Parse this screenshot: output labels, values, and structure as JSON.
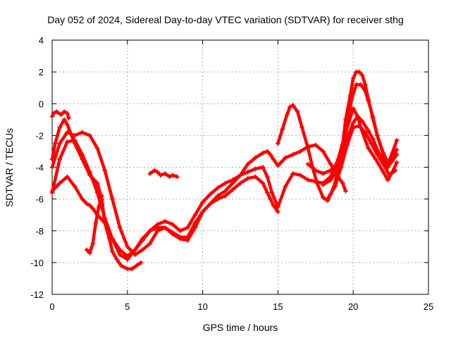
{
  "chart_data": {
    "type": "scatter",
    "title": "Day 052 of 2024, Sidereal Day-to-day VTEC variation (SDTVAR) for receiver sthg",
    "xlabel": "GPS time / hours",
    "ylabel": "SDTVAR / TECUs",
    "xlim": [
      0,
      25
    ],
    "ylim": [
      -12,
      4
    ],
    "xticks": [
      0,
      5,
      10,
      15,
      20,
      25
    ],
    "yticks": [
      -12,
      -10,
      -8,
      -6,
      -4,
      -2,
      0,
      2,
      4
    ],
    "grid": true,
    "marker": "+",
    "color": "#ff0000",
    "series": [
      {
        "name": "trace-1",
        "x": [
          0.0,
          0.2,
          0.5,
          0.8,
          1.0,
          1.5,
          2.0,
          2.5,
          3.0,
          3.3,
          3.5,
          3.8,
          4.0,
          4.3,
          4.6,
          5.0,
          5.3,
          5.6,
          5.9
        ],
        "y": [
          -3.5,
          -2.5,
          -1.5,
          -1.0,
          -1.3,
          -2.5,
          -3.5,
          -4.5,
          -5.0,
          -6.0,
          -7.5,
          -8.5,
          -9.3,
          -9.8,
          -10.2,
          -10.4,
          -10.4,
          -10.2,
          -10.0
        ]
      },
      {
        "name": "trace-2",
        "x": [
          0.0,
          0.1,
          0.3,
          0.6,
          0.8,
          1.0,
          1.1
        ],
        "y": [
          -0.8,
          -0.6,
          -0.5,
          -0.7,
          -0.5,
          -0.6,
          -0.9
        ]
      },
      {
        "name": "trace-3",
        "x": [
          0.0,
          0.5,
          1.0,
          1.5,
          2.0,
          2.5,
          3.0,
          3.5,
          4.0,
          4.5,
          5.0,
          5.5,
          6.0,
          6.5,
          7.0,
          7.5,
          8.0,
          8.5,
          9.0,
          9.5,
          10.0,
          10.5,
          11.0,
          11.5,
          12.0,
          12.5,
          13.0,
          13.5,
          14.0,
          14.3,
          14.5,
          14.7,
          15.0,
          15.2,
          15.5,
          16.0,
          16.5,
          17.0,
          17.5,
          18.0,
          18.5,
          19.0,
          19.3,
          19.5
        ],
        "y": [
          -4.0,
          -2.5,
          -1.8,
          -2.0,
          -1.8,
          -2.0,
          -2.8,
          -4.2,
          -6.0,
          -7.8,
          -9.0,
          -9.5,
          -9.2,
          -8.8,
          -8.0,
          -7.8,
          -8.2,
          -8.5,
          -8.6,
          -7.8,
          -6.8,
          -6.3,
          -5.8,
          -5.5,
          -5.0,
          -4.5,
          -3.8,
          -3.4,
          -3.1,
          -3.0,
          -3.2,
          -3.5,
          -3.9,
          -3.7,
          -3.4,
          -3.2,
          -3.0,
          -2.7,
          -2.6,
          -3.0,
          -3.8,
          -4.6,
          -5.0,
          -5.5
        ]
      },
      {
        "name": "trace-4",
        "x": [
          0.0,
          0.3,
          0.5,
          1.0,
          1.5,
          2.0,
          2.3,
          2.5,
          2.7,
          3.0,
          3.5,
          4.0,
          4.5,
          5.0,
          5.5,
          6.0,
          6.5,
          7.0,
          7.5,
          8.0,
          8.5,
          9.0,
          9.5,
          10.0,
          10.5,
          11.0,
          11.5,
          12.0,
          12.5,
          13.0,
          13.5,
          14.0,
          14.3,
          14.5,
          14.7,
          15.0
        ],
        "y": [
          -5.5,
          -5.2,
          -5.0,
          -4.6,
          -5.2,
          -6.0,
          -6.3,
          -6.4,
          -6.6,
          -7.0,
          -7.5,
          -8.5,
          -9.5,
          -9.8,
          -9.2,
          -8.5,
          -8.0,
          -7.8,
          -7.8,
          -8.1,
          -8.4,
          -8.4,
          -7.5,
          -6.8,
          -6.3,
          -6.0,
          -5.8,
          -5.4,
          -5.0,
          -4.7,
          -4.6,
          -5.0,
          -5.6,
          -6.0,
          -6.4,
          -6.8
        ]
      },
      {
        "name": "trace-5",
        "x": [
          2.3,
          2.5,
          2.7,
          2.9,
          3.1,
          3.3
        ],
        "y": [
          -9.2,
          -9.4,
          -8.8,
          -7.5,
          -6.5,
          -5.8
        ]
      },
      {
        "name": "trace-6",
        "x": [
          6.5,
          6.8,
          7.0,
          7.2,
          7.5,
          7.8,
          8.0,
          8.3
        ],
        "y": [
          -4.4,
          -4.2,
          -4.3,
          -4.5,
          -4.4,
          -4.6,
          -4.5,
          -4.6
        ]
      },
      {
        "name": "trace-7",
        "x": [
          0.0,
          0.5,
          1.0,
          1.5,
          2.0,
          2.5,
          3.0,
          3.5,
          4.0,
          4.5,
          5.0,
          5.5,
          6.0,
          6.5,
          7.0,
          7.5,
          8.0,
          8.5,
          9.0,
          9.5,
          10.0,
          10.5,
          11.0,
          11.5,
          12.0,
          12.5,
          13.0,
          13.5,
          14.0,
          14.3,
          14.6,
          15.0,
          15.5,
          16.0,
          16.5,
          17.0,
          17.5,
          18.0,
          18.5,
          19.0,
          19.5,
          20.0,
          20.3,
          20.5,
          21.0,
          21.5,
          22.0,
          22.3,
          22.6,
          22.9
        ],
        "y": [
          -5.6,
          -3.5,
          -2.4,
          -2.3,
          -3.2,
          -4.3,
          -5.6,
          -7.2,
          -8.5,
          -9.2,
          -9.6,
          -9.2,
          -8.6,
          -8.0,
          -7.6,
          -7.4,
          -7.6,
          -8.0,
          -7.8,
          -7.0,
          -6.2,
          -5.7,
          -5.3,
          -5.0,
          -4.8,
          -4.5,
          -4.3,
          -4.1,
          -4.0,
          -4.6,
          -5.6,
          -6.5,
          -5.2,
          -4.4,
          -4.5,
          -4.8,
          -4.9,
          -5.0,
          -4.6,
          -3.5,
          -1.8,
          -0.3,
          -0.8,
          -1.5,
          -2.8,
          -3.5,
          -4.3,
          -4.8,
          -4.3,
          -3.7
        ]
      },
      {
        "name": "trace-8",
        "x": [
          15.0,
          15.3,
          15.6,
          15.8,
          16.0,
          16.3,
          16.6,
          17.0,
          17.3,
          17.6,
          18.0,
          18.3,
          18.5,
          18.8,
          19.0,
          19.3,
          19.5,
          19.8,
          20.0,
          20.2,
          20.4,
          20.6,
          20.8,
          21.0,
          21.3,
          21.6,
          22.0,
          22.3,
          22.6,
          22.9
        ],
        "y": [
          -2.5,
          -1.6,
          -0.7,
          -0.2,
          -0.1,
          -0.5,
          -1.5,
          -2.8,
          -4.0,
          -5.0,
          -5.9,
          -6.1,
          -5.7,
          -5.0,
          -4.0,
          -2.6,
          -1.0,
          0.5,
          1.6,
          2.0,
          2.0,
          1.8,
          1.2,
          0.3,
          -0.9,
          -2.0,
          -3.2,
          -3.8,
          -3.1,
          -2.3
        ]
      },
      {
        "name": "trace-9",
        "x": [
          18.0,
          18.5,
          19.0,
          19.3,
          19.6,
          19.9,
          20.2,
          20.5,
          20.8,
          21.0,
          21.3,
          21.6,
          22.0,
          22.3,
          22.6,
          22.9
        ],
        "y": [
          -5.1,
          -4.8,
          -4.1,
          -3.0,
          -1.3,
          0.3,
          1.2,
          1.2,
          0.8,
          0.2,
          -0.8,
          -2.0,
          -3.1,
          -3.7,
          -3.3,
          -2.9
        ]
      },
      {
        "name": "trace-10",
        "x": [
          17.0,
          17.5,
          18.0,
          18.5,
          19.0,
          19.3,
          19.6,
          20.0,
          20.3,
          20.6,
          21.0,
          21.3,
          21.6,
          22.0,
          22.3,
          22.6,
          22.9
        ],
        "y": [
          -3.8,
          -4.2,
          -4.4,
          -4.2,
          -3.8,
          -3.2,
          -2.2,
          -1.2,
          -0.8,
          -1.1,
          -1.7,
          -2.2,
          -2.9,
          -3.6,
          -4.0,
          -3.6,
          -3.2
        ]
      },
      {
        "name": "trace-11",
        "x": [
          18.3,
          18.8,
          19.2,
          19.6,
          20.0,
          20.4,
          20.8,
          21.2,
          21.6,
          22.0,
          22.4,
          22.8
        ],
        "y": [
          -6.0,
          -5.2,
          -4.0,
          -2.6,
          -1.5,
          -1.4,
          -1.8,
          -2.5,
          -3.2,
          -3.8,
          -4.5,
          -4.2
        ]
      }
    ]
  }
}
